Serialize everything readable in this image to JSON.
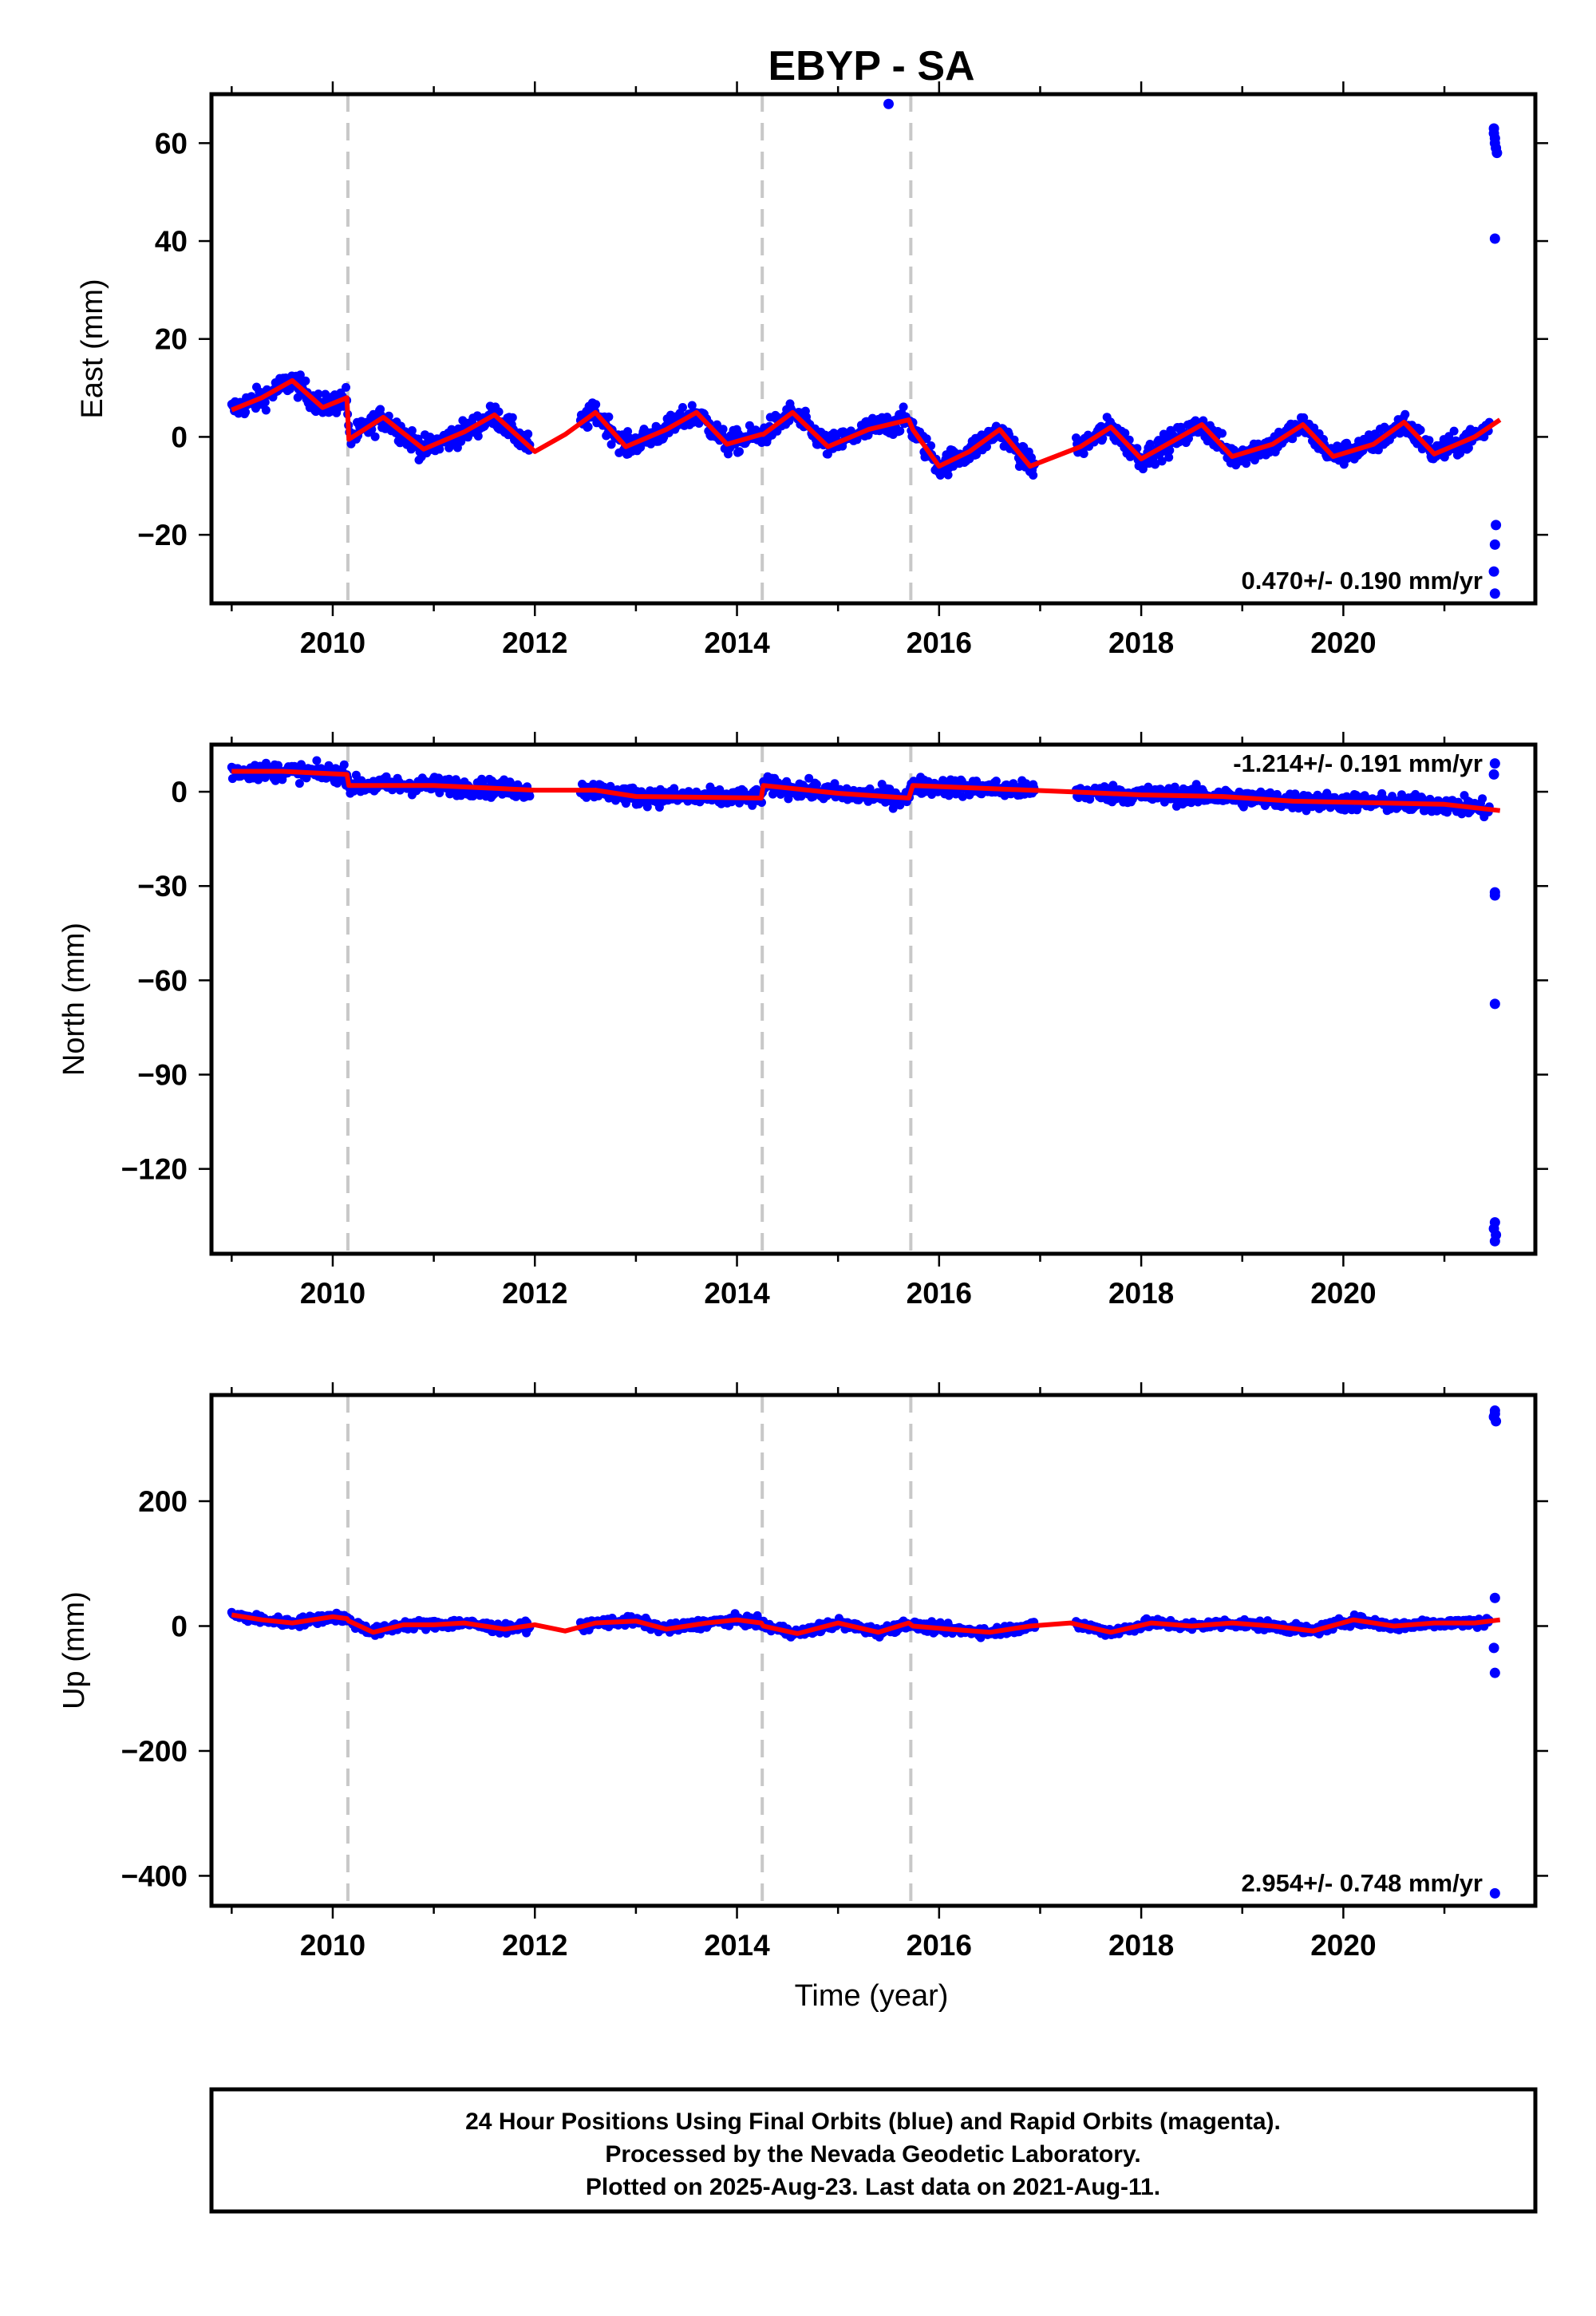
{
  "figure": {
    "title": "EBYP - SA",
    "xlabel": "Time (year)",
    "caption": [
      "24 Hour Positions Using Final Orbits (blue) and Rapid Orbits (magenta).",
      "Processed by the Nevada Geodetic Laboratory.",
      "Plotted on 2025-Aug-23. Last data on 2021-Aug-11."
    ]
  },
  "colors": {
    "data": "#0000ff",
    "model": "#ff0000",
    "equipment_change": "#c8c8c8",
    "frame": "#000000"
  },
  "chart_data": [
    {
      "type": "scatter",
      "name": "east",
      "ylabel": "East (mm)",
      "rate_text": "0.470+/- 0.190 mm/yr",
      "rate_position": "bottom-right",
      "xlim": [
        2008.8,
        2021.9
      ],
      "ylim": [
        -34,
        70
      ],
      "xticks": [
        2010,
        2012,
        2014,
        2016,
        2018,
        2020
      ],
      "xtick_labels": [
        "2010",
        "2012",
        "2014",
        "2016",
        "2018",
        "2020"
      ],
      "yticks": [
        -20,
        0,
        20,
        40,
        60
      ],
      "ytick_labels": [
        "−20",
        "0",
        "20",
        "40",
        "60"
      ],
      "grid": false,
      "offset_lines": [
        2010.15,
        2014.25,
        2015.72
      ],
      "model_line": {
        "x": [
          2009.0,
          2009.3,
          2009.6,
          2009.9,
          2010.14,
          2010.16,
          2010.5,
          2010.9,
          2011.3,
          2011.6,
          2012.0,
          2012.3,
          2012.6,
          2012.9,
          2013.3,
          2013.6,
          2013.9,
          2014.24,
          2014.26,
          2014.55,
          2014.9,
          2015.3,
          2015.7,
          2015.74,
          2016.0,
          2016.3,
          2016.6,
          2016.9,
          2017.4,
          2017.7,
          2018.0,
          2018.3,
          2018.6,
          2018.9,
          2019.3,
          2019.6,
          2019.9,
          2020.3,
          2020.6,
          2020.9,
          2021.3,
          2021.55
        ],
        "y": [
          5.5,
          8,
          11.5,
          6,
          8,
          -0.5,
          4,
          -2.5,
          1,
          4.5,
          -3,
          0.5,
          5,
          -2,
          1.5,
          5,
          -1.5,
          0.5,
          0.5,
          5,
          -2,
          1.5,
          3.5,
          1.5,
          -6,
          -3,
          1.5,
          -6,
          -2,
          2,
          -4.5,
          -1,
          2.5,
          -4,
          -1.5,
          2.5,
          -4,
          -1.5,
          3,
          -3.5,
          0,
          3.5
        ]
      },
      "scatter_segments": [
        [
          2009.0,
          2009.6,
          2009.9
        ],
        [
          5,
          11,
          7
        ],
        [
          2010.16,
          2012.0,
          2012.3
        ],
        [
          0,
          0,
          0
        ]
      ],
      "outliers": {
        "x": [
          2015.5,
          2021.49,
          2021.5,
          2021.51,
          2021.52,
          2021.5,
          2021.49,
          2021.5,
          2021.51,
          2021.5,
          2021.49,
          2021.5
        ],
        "y": [
          68,
          63,
          61,
          59,
          58,
          60,
          62,
          40.5,
          -18,
          -22,
          -27.5,
          -32
        ]
      }
    },
    {
      "type": "scatter",
      "name": "north",
      "ylabel": "North (mm)",
      "rate_text": "-1.214+/- 0.191 mm/yr",
      "rate_position": "top-right",
      "xlim": [
        2008.8,
        2021.9
      ],
      "ylim": [
        -147,
        15
      ],
      "xticks": [
        2010,
        2012,
        2014,
        2016,
        2018,
        2020
      ],
      "xtick_labels": [
        "2010",
        "2012",
        "2014",
        "2016",
        "2018",
        "2020"
      ],
      "yticks": [
        -120,
        -90,
        -60,
        -30,
        0
      ],
      "ytick_labels": [
        "−120",
        "−90",
        "−60",
        "−30",
        "0"
      ],
      "grid": false,
      "offset_lines": [
        2010.15,
        2014.25,
        2015.72
      ],
      "model_line": {
        "x": [
          2009.0,
          2009.5,
          2010.14,
          2010.16,
          2011.0,
          2012.0,
          2012.6,
          2013.0,
          2014.24,
          2014.26,
          2015.0,
          2015.7,
          2015.74,
          2016.5,
          2017.3,
          2018.0,
          2018.8,
          2019.5,
          2020.3,
          2021.0,
          2021.55
        ],
        "y": [
          6.5,
          6.5,
          5.5,
          2,
          2,
          0.5,
          0.5,
          -1.5,
          -2,
          2,
          -0.5,
          -2,
          2,
          1,
          0,
          -1,
          -1.5,
          -3,
          -3.5,
          -4,
          -6
        ]
      },
      "outliers": {
        "x": [
          2021.5,
          2021.49,
          2021.5,
          2021.5,
          2021.5,
          2021.49,
          2021.51,
          2021.5,
          2021.5
        ],
        "y": [
          9,
          5.5,
          -32,
          -33,
          -67.5,
          -139,
          -141,
          -143,
          -137
        ]
      }
    },
    {
      "type": "scatter",
      "name": "up",
      "ylabel": "Up (mm)",
      "rate_text": "2.954+/- 0.748 mm/yr",
      "rate_position": "bottom-right",
      "xlim": [
        2008.8,
        2021.9
      ],
      "ylim": [
        -448,
        370
      ],
      "xticks": [
        2010,
        2012,
        2014,
        2016,
        2018,
        2020
      ],
      "xtick_labels": [
        "2010",
        "2012",
        "2014",
        "2016",
        "2018",
        "2020"
      ],
      "yticks": [
        -400,
        -200,
        0,
        200
      ],
      "ytick_labels": [
        "−400",
        "−200",
        "0",
        "200"
      ],
      "grid": false,
      "offset_lines": [
        2010.15,
        2014.25,
        2015.72
      ],
      "model_line": {
        "x": [
          2009.0,
          2009.3,
          2009.6,
          2010.0,
          2010.14,
          2010.16,
          2010.4,
          2010.7,
          2011.0,
          2011.3,
          2011.7,
          2012.0,
          2012.3,
          2012.6,
          2013.0,
          2013.3,
          2013.7,
          2014.0,
          2014.24,
          2014.26,
          2014.6,
          2015.0,
          2015.4,
          2015.7,
          2015.74,
          2016.1,
          2016.5,
          2016.9,
          2017.3,
          2017.7,
          2018.1,
          2018.5,
          2018.9,
          2019.3,
          2019.7,
          2020.1,
          2020.5,
          2020.9,
          2021.3,
          2021.55
        ],
        "y": [
          18,
          10,
          5,
          15,
          12,
          8,
          -10,
          2,
          2,
          5,
          -5,
          2,
          -8,
          5,
          8,
          -5,
          5,
          10,
          5,
          0,
          -12,
          5,
          -10,
          5,
          0,
          -5,
          -10,
          0,
          5,
          -10,
          5,
          0,
          5,
          0,
          -8,
          10,
          0,
          5,
          5,
          10
        ]
      },
      "outliers": {
        "x": [
          2021.5,
          2021.49,
          2021.51,
          2021.5,
          2021.5,
          2021.49,
          2021.5,
          2021.5
        ],
        "y": [
          345,
          335,
          328,
          340,
          45,
          -35,
          -75,
          -428
        ]
      }
    }
  ]
}
